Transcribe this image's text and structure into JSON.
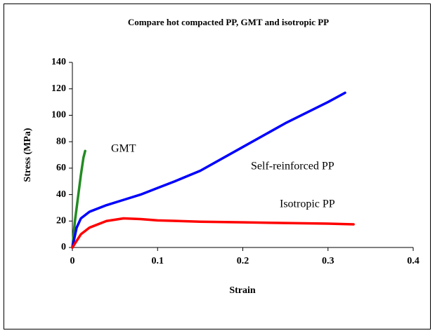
{
  "chart_data": {
    "type": "line",
    "title": "Compare hot compacted PP, GMT and isotropic PP",
    "x_label": "Strain",
    "y_label": "Stress (MPa)",
    "xlim": [
      0,
      0.4
    ],
    "xticks": [
      0,
      0.1,
      0.2,
      0.3,
      0.4
    ],
    "ylim": [
      0,
      140
    ],
    "yticks": [
      0,
      20,
      40,
      60,
      80,
      100,
      120,
      140
    ],
    "grid": false,
    "series": [
      {
        "name": "GMT",
        "color": "#228b22",
        "x": [
          0,
          0.003,
          0.006,
          0.01,
          0.013,
          0.015
        ],
        "values": [
          0,
          20,
          35,
          55,
          68,
          73
        ]
      },
      {
        "name": "Self-reinforced PP",
        "color": "#0000ff",
        "x": [
          0,
          0.005,
          0.01,
          0.02,
          0.04,
          0.06,
          0.08,
          0.1,
          0.12,
          0.15,
          0.2,
          0.25,
          0.3,
          0.32
        ],
        "values": [
          0,
          15,
          22,
          27,
          32,
          36,
          40,
          45,
          50,
          58,
          76,
          94,
          110,
          117
        ]
      },
      {
        "name": "Isotropic PP",
        "color": "#ff0000",
        "x": [
          0,
          0.01,
          0.02,
          0.04,
          0.06,
          0.08,
          0.1,
          0.15,
          0.2,
          0.25,
          0.3,
          0.33
        ],
        "values": [
          0,
          10,
          15,
          20,
          22,
          21.5,
          20.5,
          19.5,
          19,
          18.5,
          18,
          17.5
        ]
      }
    ]
  }
}
